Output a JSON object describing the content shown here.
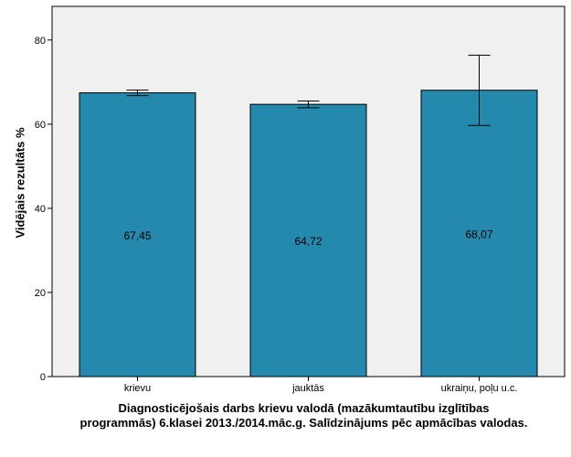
{
  "chart_data": {
    "type": "bar",
    "categories": [
      "krievu",
      "jauktās",
      "ukraiņu, poļu u.c."
    ],
    "values": [
      67.45,
      64.72,
      68.07
    ],
    "value_labels": [
      "67,45",
      "64,72",
      "68,07"
    ],
    "error_bars": [
      {
        "low": 66.8,
        "high": 68.1
      },
      {
        "low": 63.9,
        "high": 65.5
      },
      {
        "low": 59.7,
        "high": 76.4
      }
    ],
    "ylim": [
      0,
      88
    ],
    "yticks": [
      0,
      20,
      40,
      60,
      80
    ],
    "ytick_labels": [
      "0",
      "20",
      "40",
      "60",
      "80"
    ],
    "ylabel": "Vidējais rezultāts %",
    "xlabel_line1": "Diagnosticējošais darbs krievu valodā (mazākumtautību izglītības",
    "xlabel_line2": "programmās) 6.klasei 2013./2014.māc.g. Salīdzinājums pēc apmācības valodas.",
    "bar_color": "#2589ad",
    "plot_background": "#f0f0f0",
    "grid": false
  }
}
